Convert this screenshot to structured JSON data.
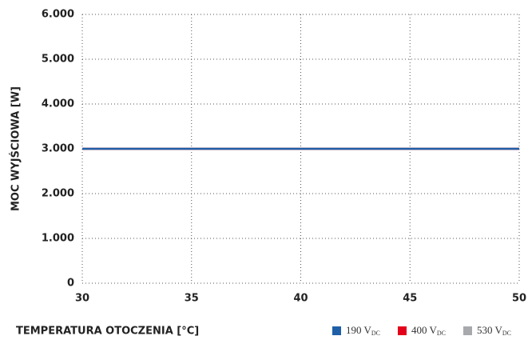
{
  "chart_data": {
    "type": "line",
    "ylabel": "MOC WYJŚCIOWA [W]",
    "xlabel": "TEMPERATURA OTOCZENIA [°C]",
    "x": [
      30,
      50
    ],
    "series": [
      {
        "name": "190 V",
        "name_sub": "DC",
        "color": "#1f5fa8",
        "values": [
          3000,
          3000
        ]
      },
      {
        "name": "400 V",
        "name_sub": "DC",
        "color": "#e3001b",
        "values": [
          3000,
          3000
        ]
      },
      {
        "name": "530 V",
        "name_sub": "DC",
        "color": "#a7a9ac",
        "values": [
          3000,
          3000
        ]
      }
    ],
    "xlim": [
      30,
      50
    ],
    "xticks": [
      30,
      35,
      40,
      45,
      50
    ],
    "ylim": [
      0,
      6000
    ],
    "yticks": [
      {
        "value": 0,
        "label": "0"
      },
      {
        "value": 1000,
        "label": "1.000"
      },
      {
        "value": 2000,
        "label": "2.000"
      },
      {
        "value": 3000,
        "label": "3.000"
      },
      {
        "value": 4000,
        "label": "4.000"
      },
      {
        "value": 5000,
        "label": "5.000"
      },
      {
        "value": 6000,
        "label": "6.000"
      }
    ],
    "grid": true
  }
}
